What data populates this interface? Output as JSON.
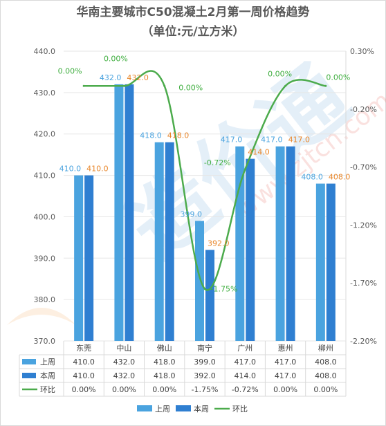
{
  "chart_data": {
    "type": "bar",
    "title": "华南主要城市C50混凝土2月第一周价格趋势",
    "subtitle": "（单位:元/立方米）",
    "categories": [
      "东莞",
      "中山",
      "佛山",
      "南宁",
      "广州",
      "惠州",
      "柳州"
    ],
    "series": [
      {
        "name": "上周",
        "type": "bar",
        "color": "#4aa3df",
        "label_color": "#4aa3df",
        "values": [
          410.0,
          432.0,
          418.0,
          399.0,
          417.0,
          417.0,
          408.0
        ],
        "labels": [
          "410.0",
          "432.0",
          "418.0",
          "399.0",
          "417.0",
          "417.0",
          "408.0"
        ]
      },
      {
        "name": "本周",
        "type": "bar",
        "color": "#2f7fd1",
        "label_color": "#e8862a",
        "values": [
          410.0,
          432.0,
          418.0,
          392.0,
          414.0,
          417.0,
          408.0
        ],
        "labels": [
          "410.0",
          "432.0",
          "418.0",
          "392.0",
          "414.0",
          "417.0",
          "408.0"
        ]
      },
      {
        "name": "环比",
        "type": "line",
        "axis": "right",
        "color": "#4cab4c",
        "label_color": "#3fae3f",
        "values": [
          0.0,
          0.0,
          0.0,
          -1.75,
          -0.72,
          0.0,
          0.0
        ],
        "labels": [
          "0.00%",
          "0.00%",
          "0.00%",
          "-1.75%",
          "-0.72%",
          "0.00%",
          "0.00%"
        ]
      }
    ],
    "y_left": {
      "min": 370,
      "max": 440,
      "ticks": [
        "370.0",
        "380.0",
        "390.0",
        "400.0",
        "410.0",
        "420.0",
        "430.0",
        "440.0"
      ]
    },
    "y_right": {
      "min": -2.2,
      "max": 0.3,
      "ticks": [
        "0.30%",
        "-0.20%",
        "-0.70%",
        "-1.20%",
        "-1.70%",
        "-2.20%"
      ]
    },
    "table_rows": [
      {
        "name": "上周",
        "cells": [
          "410.0",
          "432.0",
          "418.0",
          "399.0",
          "417.0",
          "417.0",
          "408.0"
        ]
      },
      {
        "name": "本周",
        "cells": [
          "410.0",
          "432.0",
          "418.0",
          "392.0",
          "414.0",
          "417.0",
          "408.0"
        ]
      },
      {
        "name": "环比",
        "cells": [
          "0.00%",
          "0.00%",
          "0.00%",
          "-1.75%",
          "-0.72%",
          "0.00%",
          "0.00%"
        ]
      }
    ],
    "grid": true,
    "legend_position": "bottom"
  }
}
